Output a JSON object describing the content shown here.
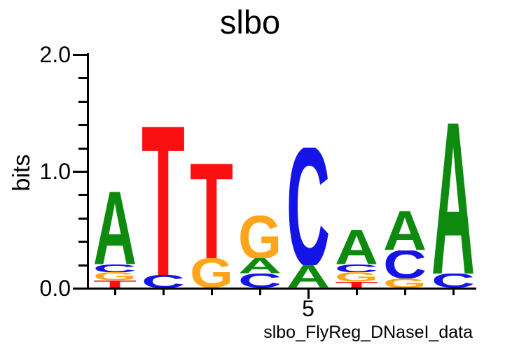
{
  "title": "slbo",
  "y_axis": {
    "label": "bits",
    "major_ticks": [
      "2.0",
      "1.0",
      "0.0"
    ],
    "minor_tick_step_bits": 0.2
  },
  "x_axis": {
    "label": "slbo_FlyReg_DNaseI_data",
    "major_tick_label": "5"
  },
  "colors": {
    "A": "#0e8a0e",
    "C": "#1414e6",
    "G": "#ffa51b",
    "T": "#fa1010"
  },
  "chart_data": {
    "type": "sequence-logo",
    "title": "slbo",
    "xlabel": "slbo_FlyReg_DNaseI_data",
    "ylabel": "bits",
    "ylim": [
      0,
      2.0
    ],
    "num_positions": 8,
    "labeled_x_tick": 5,
    "positions": [
      {
        "pos": 1,
        "stack_bottom_to_top": [
          {
            "base": "T",
            "bits": 0.06
          },
          {
            "base": "G",
            "bits": 0.07
          },
          {
            "base": "C",
            "bits": 0.07
          },
          {
            "base": "A",
            "bits": 0.62
          }
        ]
      },
      {
        "pos": 2,
        "stack_bottom_to_top": [
          {
            "base": "C",
            "bits": 0.11
          },
          {
            "base": "T",
            "bits": 1.27
          }
        ]
      },
      {
        "pos": 3,
        "stack_bottom_to_top": [
          {
            "base": "G",
            "bits": 0.25
          },
          {
            "base": "T",
            "bits": 0.81
          }
        ]
      },
      {
        "pos": 4,
        "stack_bottom_to_top": [
          {
            "base": "C",
            "bits": 0.12
          },
          {
            "base": "A",
            "bits": 0.13
          },
          {
            "base": "G",
            "bits": 0.37
          }
        ]
      },
      {
        "pos": 5,
        "stack_bottom_to_top": [
          {
            "base": "A",
            "bits": 0.19
          },
          {
            "base": "C",
            "bits": 1.01
          }
        ]
      },
      {
        "pos": 6,
        "stack_bottom_to_top": [
          {
            "base": "T",
            "bits": 0.05
          },
          {
            "base": "G",
            "bits": 0.08
          },
          {
            "base": "C",
            "bits": 0.07
          },
          {
            "base": "A",
            "bits": 0.29
          }
        ]
      },
      {
        "pos": 7,
        "stack_bottom_to_top": [
          {
            "base": "G",
            "bits": 0.08
          },
          {
            "base": "C",
            "bits": 0.24
          },
          {
            "base": "A",
            "bits": 0.33
          }
        ]
      },
      {
        "pos": 8,
        "stack_bottom_to_top": [
          {
            "base": "C",
            "bits": 0.12
          },
          {
            "base": "A",
            "bits": 1.29
          }
        ]
      }
    ]
  }
}
